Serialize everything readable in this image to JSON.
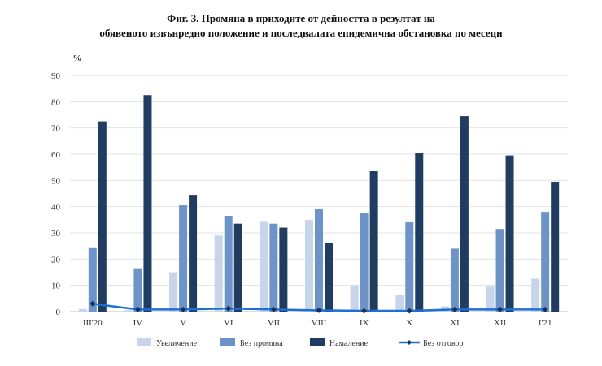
{
  "title_line1": "Фиг. 3. Промяна в приходите от дейността в резултат на",
  "title_line2": "обявеното извънредно положение и последвалата епидемична обстановка по месеци",
  "chart_data": {
    "type": "bar",
    "ylabel": "%",
    "ylim": [
      0,
      90
    ],
    "yticks": [
      0,
      10,
      20,
      30,
      40,
      50,
      60,
      70,
      80,
      90
    ],
    "grid": true,
    "legend_position": "bottom",
    "categories": [
      "III'20",
      "IV",
      "V",
      "VI",
      "VII",
      "VIII",
      "IX",
      "X",
      "XI",
      "XII",
      "I'21"
    ],
    "series": [
      {
        "name": "Увеличение",
        "type": "bar",
        "color": "#c6d5ea",
        "values": [
          1.0,
          0.5,
          15.0,
          29.0,
          34.5,
          35.0,
          10.0,
          6.5,
          2.0,
          9.5,
          12.5
        ]
      },
      {
        "name": "Без промяна",
        "type": "bar",
        "color": "#6c94c8",
        "values": [
          24.5,
          16.5,
          40.5,
          36.5,
          33.5,
          39.0,
          37.5,
          34.0,
          24.0,
          31.5,
          38.0
        ]
      },
      {
        "name": "Намаление",
        "type": "bar",
        "color": "#203c60",
        "values": [
          72.5,
          82.5,
          44.5,
          33.5,
          32.0,
          26.0,
          53.5,
          60.5,
          74.5,
          59.5,
          49.5
        ]
      },
      {
        "name": "Без отговор",
        "type": "line",
        "color": "#1c6fd6",
        "values": [
          3.0,
          0.8,
          0.8,
          1.2,
          0.8,
          0.5,
          0.3,
          0.3,
          0.8,
          0.8,
          0.8
        ]
      }
    ]
  }
}
